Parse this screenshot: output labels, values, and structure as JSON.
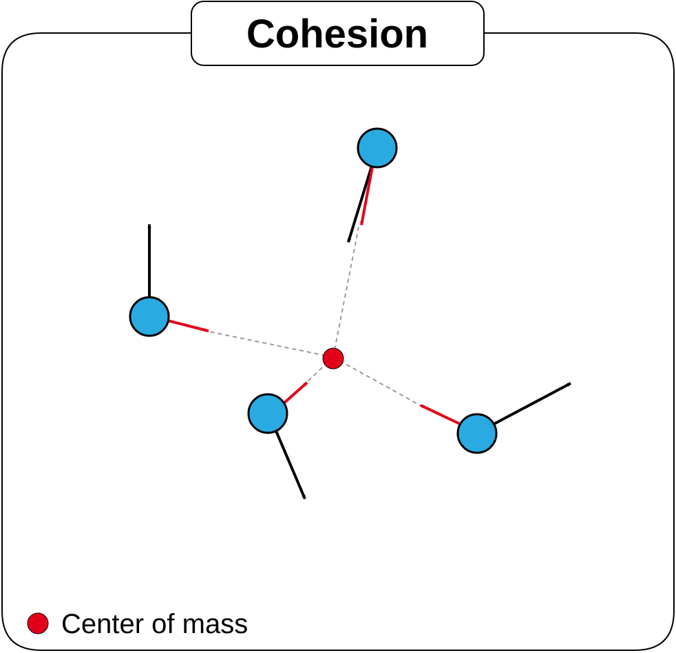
{
  "title": "Cohesion",
  "legend": {
    "label": "Center of mass",
    "marker_color": "#e2001a"
  },
  "colors": {
    "agent_fill": "#29abe2",
    "outline": "#000000",
    "velocity_arrow": "#000000",
    "cohesion_arrow": "#e2001a",
    "dashed_line": "#999999",
    "center_of_mass": "#e2001a"
  },
  "scene": {
    "center_of_mass": "center-of-mass-dot",
    "agents": [
      {
        "name": "agent-top",
        "velocity": "black velocity arrow pointing down-left",
        "steering": "red arrow pointing toward center of mass"
      },
      {
        "name": "agent-left",
        "velocity": "black velocity arrow pointing up",
        "steering": "red arrow pointing toward center of mass"
      },
      {
        "name": "agent-bottom-left",
        "velocity": "black velocity arrow pointing down-right",
        "steering": "red arrow pointing toward center of mass"
      },
      {
        "name": "agent-right",
        "velocity": "black velocity arrow pointing up-right",
        "steering": "red arrow pointing toward center of mass"
      }
    ]
  }
}
